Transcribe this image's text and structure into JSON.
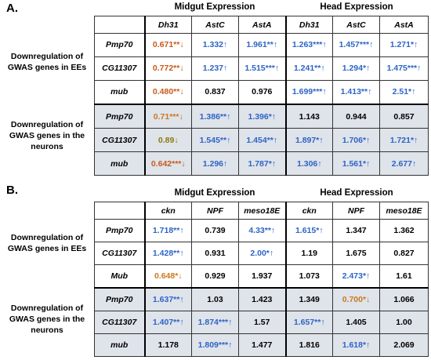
{
  "panelA": {
    "letter": "A.",
    "group_headers": [
      "Midgut Expression",
      "Head Expression"
    ],
    "columns": [
      "Dh31",
      "AstC",
      "AstA",
      "Dh31",
      "AstC",
      "AstA"
    ],
    "section_labels": [
      "Downregulation of GWAS genes in EEs",
      "Downregulation of GWAS genes in the neurons"
    ],
    "rows": [
      {
        "gene": "Pmp70",
        "cells": [
          {
            "v": "0.671**↓",
            "c": "down"
          },
          {
            "v": "1.332↑",
            "c": "up"
          },
          {
            "v": "1.961**↑",
            "c": "up"
          },
          {
            "v": "1.263***↑",
            "c": "up"
          },
          {
            "v": "1.457***↑",
            "c": "up"
          },
          {
            "v": "1.271*↑",
            "c": "up"
          }
        ]
      },
      {
        "gene": "CG11307",
        "cells": [
          {
            "v": "0.772**↓",
            "c": "down"
          },
          {
            "v": "1.237↑",
            "c": "up"
          },
          {
            "v": "1.515***↑",
            "c": "up"
          },
          {
            "v": "1.241**↑",
            "c": "up"
          },
          {
            "v": "1.294*↑",
            "c": "up"
          },
          {
            "v": "1.475***↑",
            "c": "up"
          }
        ]
      },
      {
        "gene": "mub",
        "cells": [
          {
            "v": "0.480**↓",
            "c": "down"
          },
          {
            "v": "0.837",
            "c": "ns"
          },
          {
            "v": "0.976",
            "c": "ns"
          },
          {
            "v": "1.699***↑",
            "c": "up"
          },
          {
            "v": "1.413**↑",
            "c": "up"
          },
          {
            "v": "2.51*↑",
            "c": "up"
          }
        ]
      },
      {
        "gene": "Pmp70",
        "cells": [
          {
            "v": "0.71***↓",
            "c": "orange"
          },
          {
            "v": "1.386**↑",
            "c": "up"
          },
          {
            "v": "1.396*↑",
            "c": "up"
          },
          {
            "v": "1.143",
            "c": "ns"
          },
          {
            "v": "0.944",
            "c": "ns"
          },
          {
            "v": "0.857",
            "c": "ns"
          }
        ]
      },
      {
        "gene": "CG11307",
        "cells": [
          {
            "v": "0.89↓",
            "c": "olive"
          },
          {
            "v": "1.545**↑",
            "c": "up"
          },
          {
            "v": "1.454**↑",
            "c": "up"
          },
          {
            "v": "1.897*↑",
            "c": "up"
          },
          {
            "v": "1.706*↑",
            "c": "up"
          },
          {
            "v": "1.721*↑",
            "c": "up"
          }
        ]
      },
      {
        "gene": "mub",
        "cells": [
          {
            "v": "0.642***↓",
            "c": "down"
          },
          {
            "v": "1.296↑",
            "c": "up"
          },
          {
            "v": "1.787*↑",
            "c": "up"
          },
          {
            "v": "1.306↑",
            "c": "up"
          },
          {
            "v": "1.561*↑",
            "c": "up"
          },
          {
            "v": "2.677↑",
            "c": "up"
          }
        ]
      }
    ]
  },
  "panelB": {
    "letter": "B.",
    "group_headers": [
      "Midgut Expression",
      "Head Expression"
    ],
    "columns": [
      "ckn",
      "NPF",
      "meso18E",
      "ckn",
      "NPF",
      "meso18E"
    ],
    "section_labels": [
      "Downregulation of GWAS genes in EEs",
      "Downregulation of GWAS genes in the neurons"
    ],
    "rows": [
      {
        "gene": "Pmp70",
        "cells": [
          {
            "v": "1.718**↑",
            "c": "up"
          },
          {
            "v": "0.739",
            "c": "ns"
          },
          {
            "v": "4.33**↑",
            "c": "up"
          },
          {
            "v": "1.615*↑",
            "c": "up"
          },
          {
            "v": "1.347",
            "c": "ns"
          },
          {
            "v": "1.362",
            "c": "ns"
          }
        ]
      },
      {
        "gene": "CG11307",
        "cells": [
          {
            "v": "1.428**↑",
            "c": "up"
          },
          {
            "v": "0.931",
            "c": "ns"
          },
          {
            "v": "2.00*↑",
            "c": "up"
          },
          {
            "v": "1.19",
            "c": "ns"
          },
          {
            "v": "1.675",
            "c": "ns"
          },
          {
            "v": "0.827",
            "c": "ns"
          }
        ]
      },
      {
        "gene": "Mub",
        "cells": [
          {
            "v": "0.648*↓",
            "c": "orange"
          },
          {
            "v": "0.929",
            "c": "ns"
          },
          {
            "v": "1.937",
            "c": "ns"
          },
          {
            "v": "1.073",
            "c": "ns"
          },
          {
            "v": "2.473*↑",
            "c": "up"
          },
          {
            "v": "1.61",
            "c": "ns"
          }
        ]
      },
      {
        "gene": "Pmp70",
        "cells": [
          {
            "v": "1.637**↑",
            "c": "up"
          },
          {
            "v": "1.03",
            "c": "ns"
          },
          {
            "v": "1.423",
            "c": "ns"
          },
          {
            "v": "1.349",
            "c": "ns"
          },
          {
            "v": "0.700*↓",
            "c": "orange"
          },
          {
            "v": "1.066",
            "c": "ns"
          }
        ]
      },
      {
        "gene": "CG11307",
        "cells": [
          {
            "v": "1.407**↑",
            "c": "up"
          },
          {
            "v": "1.874***↑",
            "c": "up"
          },
          {
            "v": "1.57",
            "c": "ns"
          },
          {
            "v": "1.657**↑",
            "c": "up"
          },
          {
            "v": "1.405",
            "c": "ns"
          },
          {
            "v": "1.00",
            "c": "ns"
          }
        ]
      },
      {
        "gene": "mub",
        "cells": [
          {
            "v": "1.178",
            "c": "ns"
          },
          {
            "v": "1.809***↑",
            "c": "up"
          },
          {
            "v": "1.477",
            "c": "ns"
          },
          {
            "v": "1.816",
            "c": "ns"
          },
          {
            "v": "1.618*↑",
            "c": "up"
          },
          {
            "v": "2.069",
            "c": "ns"
          }
        ]
      }
    ]
  }
}
